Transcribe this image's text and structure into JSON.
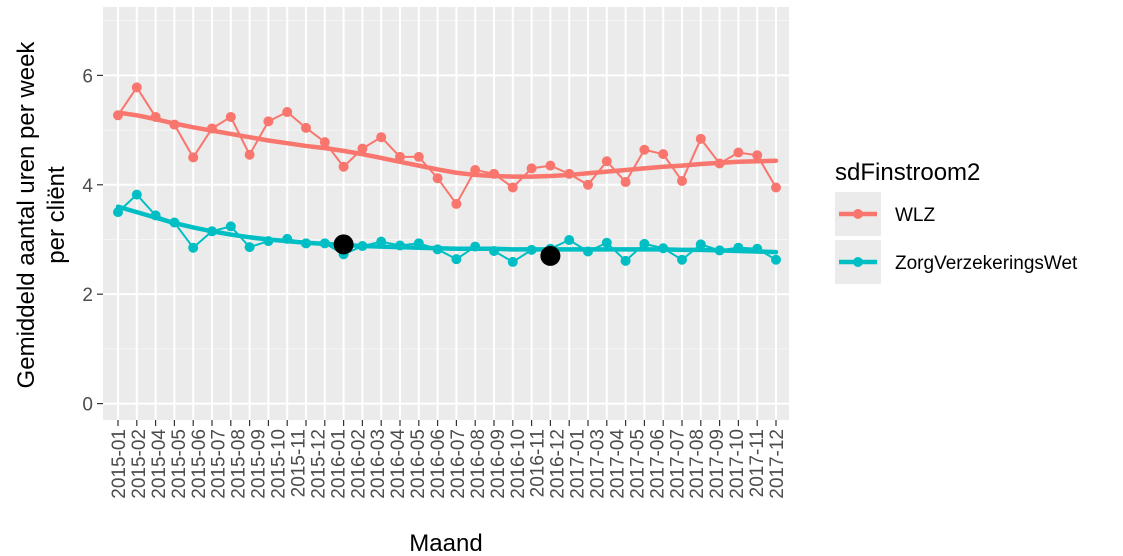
{
  "chart_data": {
    "type": "line",
    "xlabel": "Maand",
    "ylabel_lines": [
      "Gemiddeld aantal uren per week",
      "per cliënt"
    ],
    "legend_title": "sdFinstroom2",
    "legend_position": "right",
    "ylim": [
      -0.3,
      7.25
    ],
    "yticks": [
      0,
      2,
      4,
      6
    ],
    "grid": true,
    "background": "#ebebeb",
    "categories": [
      "2015-01",
      "2015-02",
      "2015-03",
      "2015-04",
      "2015-05",
      "2015-06",
      "2015-07",
      "2015-08",
      "2015-09",
      "2015-10",
      "2015-11",
      "2015-12",
      "2016-01",
      "2016-02",
      "2016-03",
      "2016-04",
      "2016-05",
      "2016-06",
      "2016-07",
      "2016-08",
      "2016-09",
      "2016-10",
      "2016-11",
      "2016-12",
      "2017-01",
      "2017-02",
      "2017-03",
      "2017-04",
      "2017-05",
      "2017-06",
      "2017-07",
      "2017-08",
      "2017-09",
      "2017-10",
      "2017-11",
      "2017-12"
    ],
    "tick_labels": [
      "2015-01",
      "2015-02",
      "2015-04",
      "2015-05",
      "2015-06",
      "2015-07",
      "2015-08",
      "2015-09",
      "2015-10",
      "2015-11",
      "2015-12",
      "2016-01",
      "2016-02",
      "2016-03",
      "2016-04",
      "2016-05",
      "2016-06",
      "2016-07",
      "2016-08",
      "2016-09",
      "2016-10",
      "2016-11",
      "2016-12",
      "2017-01",
      "2017-03",
      "2017-04",
      "2017-05",
      "2017-06",
      "2017-07",
      "2017-08",
      "2017-09",
      "2017-10",
      "2017-11",
      "2017-12"
    ],
    "series": [
      {
        "name": "WLZ",
        "color": "#f8766d",
        "values": [
          5.27,
          5.78,
          5.24,
          5.1,
          4.5,
          5.03,
          5.24,
          4.55,
          5.16,
          5.33,
          5.04,
          4.78,
          4.33,
          4.66,
          4.87,
          4.51,
          4.51,
          4.12,
          3.65,
          4.27,
          4.2,
          3.95,
          4.3,
          4.35,
          4.2,
          4.0,
          4.43,
          4.05,
          4.64,
          4.56,
          4.07,
          4.84,
          4.39,
          4.59,
          4.54,
          3.95
        ],
        "smooth": [
          5.32,
          5.27,
          5.2,
          5.12,
          5.05,
          4.99,
          4.93,
          4.87,
          4.81,
          4.76,
          4.71,
          4.67,
          4.62,
          4.56,
          4.49,
          4.42,
          4.35,
          4.28,
          4.22,
          4.18,
          4.16,
          4.15,
          4.15,
          4.16,
          4.18,
          4.21,
          4.24,
          4.27,
          4.3,
          4.33,
          4.35,
          4.38,
          4.4,
          4.42,
          4.43,
          4.44
        ]
      },
      {
        "name": "ZorgVerzekeringsWet",
        "color": "#00bfc4",
        "values": [
          3.5,
          3.82,
          3.44,
          3.31,
          2.85,
          3.15,
          3.24,
          2.86,
          2.97,
          3.01,
          2.93,
          2.93,
          2.73,
          2.88,
          2.96,
          2.89,
          2.93,
          2.82,
          2.64,
          2.87,
          2.79,
          2.59,
          2.81,
          2.83,
          2.99,
          2.78,
          2.94,
          2.61,
          2.92,
          2.84,
          2.63,
          2.91,
          2.8,
          2.85,
          2.83,
          2.63
        ],
        "smooth": [
          3.6,
          3.5,
          3.4,
          3.3,
          3.22,
          3.15,
          3.09,
          3.04,
          3.0,
          2.97,
          2.94,
          2.92,
          2.9,
          2.88,
          2.87,
          2.86,
          2.85,
          2.84,
          2.83,
          2.83,
          2.83,
          2.82,
          2.82,
          2.82,
          2.82,
          2.82,
          2.82,
          2.82,
          2.82,
          2.82,
          2.81,
          2.81,
          2.8,
          2.79,
          2.78,
          2.77
        ]
      }
    ],
    "highlight_points": [
      {
        "x": "2016-01",
        "y": 2.91
      },
      {
        "x": "2016-12",
        "y": 2.7
      }
    ]
  }
}
